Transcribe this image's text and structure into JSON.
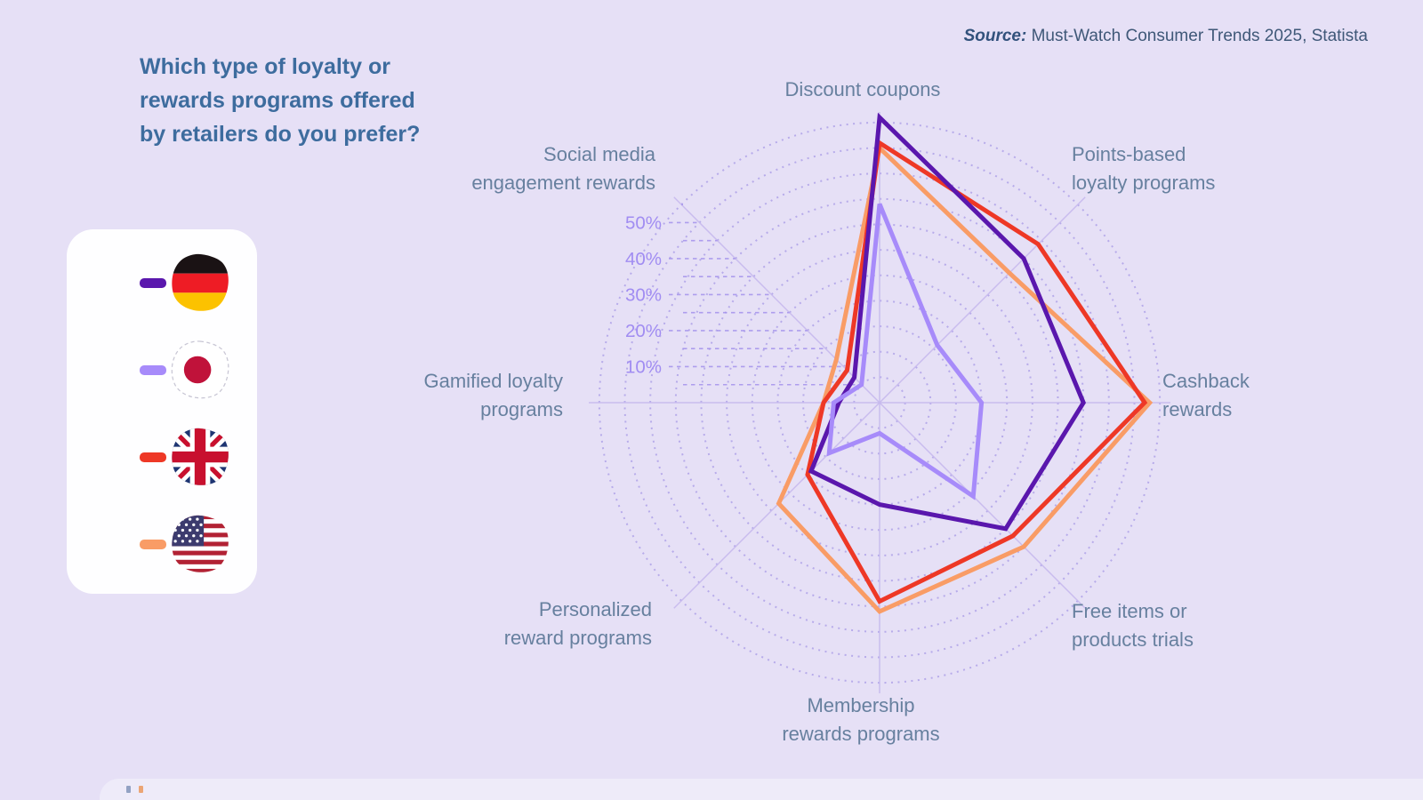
{
  "title": {
    "lines": [
      "Which type of loyalty or",
      "rewards programs offered",
      "by retailers do you prefer?"
    ]
  },
  "source": {
    "prefix": "Source:",
    "text": " Must-Watch Consumer Trends 2025, Statista"
  },
  "legend": {
    "items": [
      {
        "country": "Germany",
        "flag_icon": "germany-flag-icon"
      },
      {
        "country": "Japan",
        "flag_icon": "japan-flag-icon"
      },
      {
        "country": "United Kingdom",
        "flag_icon": "uk-flag-icon"
      },
      {
        "country": "United States",
        "flag_icon": "us-flag-icon"
      }
    ]
  },
  "chart_data": {
    "type": "radar",
    "categories": [
      "Discount coupons",
      "Points-based loyalty programs",
      "Cashback rewards",
      "Free items or products trials",
      "Membership rewards programs",
      "Personalized reward programs",
      "Gamified loyalty programs",
      "Social media engagement rewards"
    ],
    "axis_labels": [
      [
        "Discount coupons"
      ],
      [
        "Points-based",
        "loyalty programs"
      ],
      [
        "Cashback",
        "rewards"
      ],
      [
        "Free items or",
        "products trials"
      ],
      [
        "Membership",
        "rewards programs"
      ],
      [
        "Personalized",
        "reward programs"
      ],
      [
        "Gamified loyalty",
        "programs"
      ],
      [
        "Social media",
        "engagement rewards"
      ]
    ],
    "series": [
      {
        "name": "Germany",
        "color": "#5a17ad",
        "values": [
          56,
          40,
          40,
          35,
          20,
          19,
          8,
          7
        ]
      },
      {
        "name": "Japan",
        "color": "#a78bfa",
        "values": [
          39,
          16,
          20,
          26,
          6,
          14,
          9,
          5
        ]
      },
      {
        "name": "United Kingdom",
        "color": "#ee3826",
        "values": [
          51,
          44,
          52,
          37,
          39,
          20,
          11,
          9
        ]
      },
      {
        "name": "United States",
        "color": "#f99c66",
        "values": [
          50,
          36,
          53,
          40,
          41,
          28,
          11,
          12
        ]
      }
    ],
    "ticks": [
      {
        "value": 10,
        "label": "10%"
      },
      {
        "value": 20,
        "label": "20%"
      },
      {
        "value": 30,
        "label": "30%"
      },
      {
        "value": 40,
        "label": "40%"
      },
      {
        "value": 50,
        "label": "50%"
      }
    ],
    "unit": "%",
    "rlim": [
      0,
      55
    ],
    "grid_step": 5,
    "grid_style": "dotted-circles",
    "start_angle_deg": -90,
    "direction": "clockwise",
    "legend_position": "left",
    "colors": {
      "background": "#e6e0f6",
      "axis_line": "#c6b9ee",
      "grid_dots": "#8f80e0",
      "tick_label": "#a18df2",
      "axis_label": "#67809f",
      "title": "#3d6c9e"
    }
  }
}
